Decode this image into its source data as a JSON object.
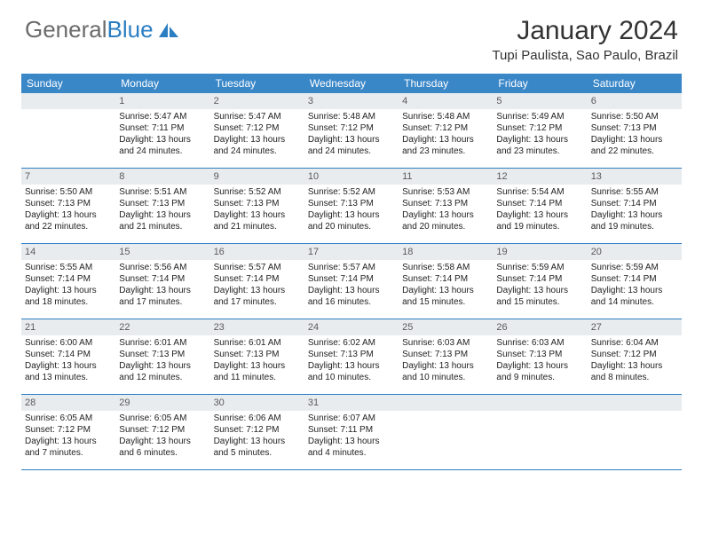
{
  "logo": {
    "part1": "General",
    "part2": "Blue"
  },
  "header": {
    "month_title": "January 2024",
    "location": "Tupi Paulista, Sao Paulo, Brazil"
  },
  "colors": {
    "header_bg": "#3a87c8",
    "row_border": "#2b7ec2",
    "daynum_bg": "#e9ecef",
    "logo_gray": "#6b6b6b",
    "logo_blue": "#2b7ec2"
  },
  "weekdays": [
    "Sunday",
    "Monday",
    "Tuesday",
    "Wednesday",
    "Thursday",
    "Friday",
    "Saturday"
  ],
  "layout": {
    "columns": 7,
    "first_day_column": 1,
    "rows": 5
  },
  "days": [
    {
      "n": 1,
      "sunrise": "5:47 AM",
      "sunset": "7:11 PM",
      "daylight": "13 hours and 24 minutes."
    },
    {
      "n": 2,
      "sunrise": "5:47 AM",
      "sunset": "7:12 PM",
      "daylight": "13 hours and 24 minutes."
    },
    {
      "n": 3,
      "sunrise": "5:48 AM",
      "sunset": "7:12 PM",
      "daylight": "13 hours and 24 minutes."
    },
    {
      "n": 4,
      "sunrise": "5:48 AM",
      "sunset": "7:12 PM",
      "daylight": "13 hours and 23 minutes."
    },
    {
      "n": 5,
      "sunrise": "5:49 AM",
      "sunset": "7:12 PM",
      "daylight": "13 hours and 23 minutes."
    },
    {
      "n": 6,
      "sunrise": "5:50 AM",
      "sunset": "7:13 PM",
      "daylight": "13 hours and 22 minutes."
    },
    {
      "n": 7,
      "sunrise": "5:50 AM",
      "sunset": "7:13 PM",
      "daylight": "13 hours and 22 minutes."
    },
    {
      "n": 8,
      "sunrise": "5:51 AM",
      "sunset": "7:13 PM",
      "daylight": "13 hours and 21 minutes."
    },
    {
      "n": 9,
      "sunrise": "5:52 AM",
      "sunset": "7:13 PM",
      "daylight": "13 hours and 21 minutes."
    },
    {
      "n": 10,
      "sunrise": "5:52 AM",
      "sunset": "7:13 PM",
      "daylight": "13 hours and 20 minutes."
    },
    {
      "n": 11,
      "sunrise": "5:53 AM",
      "sunset": "7:13 PM",
      "daylight": "13 hours and 20 minutes."
    },
    {
      "n": 12,
      "sunrise": "5:54 AM",
      "sunset": "7:14 PM",
      "daylight": "13 hours and 19 minutes."
    },
    {
      "n": 13,
      "sunrise": "5:55 AM",
      "sunset": "7:14 PM",
      "daylight": "13 hours and 19 minutes."
    },
    {
      "n": 14,
      "sunrise": "5:55 AM",
      "sunset": "7:14 PM",
      "daylight": "13 hours and 18 minutes."
    },
    {
      "n": 15,
      "sunrise": "5:56 AM",
      "sunset": "7:14 PM",
      "daylight": "13 hours and 17 minutes."
    },
    {
      "n": 16,
      "sunrise": "5:57 AM",
      "sunset": "7:14 PM",
      "daylight": "13 hours and 17 minutes."
    },
    {
      "n": 17,
      "sunrise": "5:57 AM",
      "sunset": "7:14 PM",
      "daylight": "13 hours and 16 minutes."
    },
    {
      "n": 18,
      "sunrise": "5:58 AM",
      "sunset": "7:14 PM",
      "daylight": "13 hours and 15 minutes."
    },
    {
      "n": 19,
      "sunrise": "5:59 AM",
      "sunset": "7:14 PM",
      "daylight": "13 hours and 15 minutes."
    },
    {
      "n": 20,
      "sunrise": "5:59 AM",
      "sunset": "7:14 PM",
      "daylight": "13 hours and 14 minutes."
    },
    {
      "n": 21,
      "sunrise": "6:00 AM",
      "sunset": "7:14 PM",
      "daylight": "13 hours and 13 minutes."
    },
    {
      "n": 22,
      "sunrise": "6:01 AM",
      "sunset": "7:13 PM",
      "daylight": "13 hours and 12 minutes."
    },
    {
      "n": 23,
      "sunrise": "6:01 AM",
      "sunset": "7:13 PM",
      "daylight": "13 hours and 11 minutes."
    },
    {
      "n": 24,
      "sunrise": "6:02 AM",
      "sunset": "7:13 PM",
      "daylight": "13 hours and 10 minutes."
    },
    {
      "n": 25,
      "sunrise": "6:03 AM",
      "sunset": "7:13 PM",
      "daylight": "13 hours and 10 minutes."
    },
    {
      "n": 26,
      "sunrise": "6:03 AM",
      "sunset": "7:13 PM",
      "daylight": "13 hours and 9 minutes."
    },
    {
      "n": 27,
      "sunrise": "6:04 AM",
      "sunset": "7:12 PM",
      "daylight": "13 hours and 8 minutes."
    },
    {
      "n": 28,
      "sunrise": "6:05 AM",
      "sunset": "7:12 PM",
      "daylight": "13 hours and 7 minutes."
    },
    {
      "n": 29,
      "sunrise": "6:05 AM",
      "sunset": "7:12 PM",
      "daylight": "13 hours and 6 minutes."
    },
    {
      "n": 30,
      "sunrise": "6:06 AM",
      "sunset": "7:12 PM",
      "daylight": "13 hours and 5 minutes."
    },
    {
      "n": 31,
      "sunrise": "6:07 AM",
      "sunset": "7:11 PM",
      "daylight": "13 hours and 4 minutes."
    }
  ],
  "labels": {
    "sunrise_prefix": "Sunrise: ",
    "sunset_prefix": "Sunset: ",
    "daylight_prefix": "Daylight: "
  }
}
